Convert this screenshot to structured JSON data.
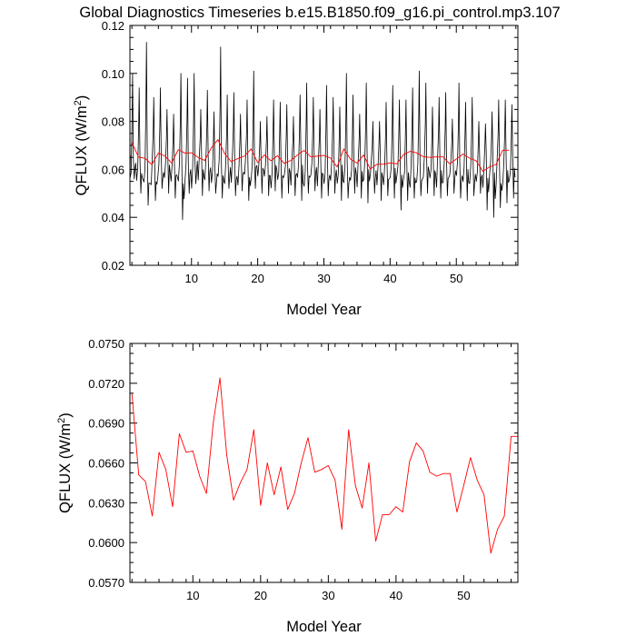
{
  "title": "Global Diagnostics Timeseries b.e15.B1850.f09_g16.pi_control.mp3.107",
  "colors": {
    "monthly": "#000000",
    "annual": "#ff0000",
    "axes": "#000000"
  },
  "chart_data": [
    {
      "type": "line",
      "xlabel": "Model Year",
      "ylabel": "QFLUX (W/m",
      "ylabel_sup": "2",
      "ylabel_close": ")",
      "xlim": [
        0.7,
        59.3
      ],
      "ylim": [
        0.02,
        0.12
      ],
      "xticks": [
        10,
        20,
        30,
        40,
        50
      ],
      "xtick_labels": [
        "10",
        "20",
        "30",
        "40",
        "50"
      ],
      "yticks": [
        0.02,
        0.04,
        0.06,
        0.08,
        0.1,
        0.12
      ],
      "ytick_labels": [
        "0.02",
        "0.04",
        "0.06",
        "0.08",
        "0.10",
        "0.12"
      ],
      "series": [
        {
          "style": "monthly",
          "peak_years": [
            1.1,
            2.1,
            3.2,
            4.3,
            5.3,
            6.3,
            7.3,
            8.4,
            9.4,
            10.4,
            11.4,
            12.4,
            13.4,
            14.4,
            15.4,
            16.4,
            17.4,
            18.4,
            19.4,
            20.4,
            21.4,
            22.4,
            23.4,
            24.4,
            25.4,
            26.4,
            27.4,
            28.4,
            29.4,
            30.4,
            31.4,
            32.4,
            33.4,
            34.4,
            35.4,
            36.4,
            37.4,
            38.4,
            39.4,
            40.4,
            41.4,
            42.4,
            43.4,
            44.4,
            45.4,
            46.4,
            47.4,
            48.4,
            49.4,
            50.4,
            51.4,
            52.4,
            53.4,
            54.4,
            55.4,
            56.4,
            57.4,
            58.4
          ],
          "peak_values": [
            0.1,
            0.094,
            0.113,
            0.09,
            0.094,
            0.085,
            0.083,
            0.1,
            0.098,
            0.1,
            0.085,
            0.093,
            0.084,
            0.111,
            0.091,
            0.092,
            0.083,
            0.089,
            0.101,
            0.08,
            0.082,
            0.089,
            0.088,
            0.087,
            0.082,
            0.091,
            0.096,
            0.09,
            0.085,
            0.095,
            0.09,
            0.086,
            0.1,
            0.091,
            0.083,
            0.096,
            0.08,
            0.08,
            0.088,
            0.095,
            0.089,
            0.089,
            0.094,
            0.101,
            0.096,
            0.086,
            0.09,
            0.092,
            0.081,
            0.096,
            0.088,
            0.09,
            0.08,
            0.079,
            0.084,
            0.089,
            0.089,
            0.087
          ],
          "trough_values": [
            0.056,
            0.05,
            0.045,
            0.047,
            0.052,
            0.05,
            0.048,
            0.039,
            0.05,
            0.054,
            0.049,
            0.051,
            0.05,
            0.048,
            0.052,
            0.049,
            0.051,
            0.047,
            0.052,
            0.05,
            0.049,
            0.051,
            0.048,
            0.05,
            0.049,
            0.047,
            0.05,
            0.051,
            0.048,
            0.049,
            0.05,
            0.047,
            0.048,
            0.05,
            0.048,
            0.046,
            0.05,
            0.047,
            0.049,
            0.048,
            0.043,
            0.047,
            0.048,
            0.049,
            0.05,
            0.049,
            0.048,
            0.049,
            0.05,
            0.048,
            0.047,
            0.049,
            0.05,
            0.043,
            0.04,
            0.044,
            0.046,
            0.048
          ]
        },
        {
          "style": "annual",
          "x": [
            1,
            2,
            3,
            4,
            5,
            6,
            7,
            8,
            9,
            10,
            11,
            12,
            13,
            14,
            15,
            16,
            17,
            18,
            19,
            20,
            21,
            22,
            23,
            24,
            25,
            26,
            27,
            28,
            29,
            30,
            31,
            32,
            33,
            34,
            35,
            36,
            37,
            38,
            39,
            40,
            41,
            42,
            43,
            44,
            45,
            46,
            47,
            48,
            49,
            50,
            51,
            52,
            53,
            54,
            55,
            56,
            57,
            58
          ],
          "values": [
            0.0712,
            0.0651,
            0.0646,
            0.062,
            0.0668,
            0.0655,
            0.0627,
            0.0682,
            0.0668,
            0.0669,
            0.065,
            0.0637,
            0.069,
            0.0724,
            0.0666,
            0.0632,
            0.0645,
            0.0655,
            0.0685,
            0.0628,
            0.066,
            0.0636,
            0.0657,
            0.0625,
            0.0637,
            0.066,
            0.0679,
            0.0653,
            0.0655,
            0.0658,
            0.0647,
            0.061,
            0.0685,
            0.0643,
            0.0626,
            0.066,
            0.0601,
            0.0621,
            0.0621,
            0.0627,
            0.0623,
            0.0661,
            0.0675,
            0.0669,
            0.0653,
            0.065,
            0.0652,
            0.0652,
            0.0623,
            0.0643,
            0.0664,
            0.0647,
            0.0636,
            0.0592,
            0.061,
            0.062,
            0.068,
            0.068
          ]
        }
      ]
    },
    {
      "type": "line",
      "xlabel": "Model Year",
      "ylabel": "QFLUX (W/m",
      "ylabel_sup": "2",
      "ylabel_close": ")",
      "xlim": [
        0.7,
        58.0
      ],
      "ylim": [
        0.057,
        0.075
      ],
      "xticks": [
        10,
        20,
        30,
        40,
        50
      ],
      "xtick_labels": [
        "10",
        "20",
        "30",
        "40",
        "50"
      ],
      "yticks": [
        0.057,
        0.06,
        0.063,
        0.066,
        0.069,
        0.072,
        0.075
      ],
      "ytick_labels": [
        "0.0570",
        "0.0600",
        "0.0630",
        "0.0660",
        "0.0690",
        "0.0720",
        "0.0750"
      ],
      "series": [
        {
          "style": "annual",
          "x": [
            1,
            2,
            3,
            4,
            5,
            6,
            7,
            8,
            9,
            10,
            11,
            12,
            13,
            14,
            15,
            16,
            17,
            18,
            19,
            20,
            21,
            22,
            23,
            24,
            25,
            26,
            27,
            28,
            29,
            30,
            31,
            32,
            33,
            34,
            35,
            36,
            37,
            38,
            39,
            40,
            41,
            42,
            43,
            44,
            45,
            46,
            47,
            48,
            49,
            50,
            51,
            52,
            53,
            54,
            55,
            56,
            57,
            58
          ],
          "values": [
            0.0712,
            0.0651,
            0.0646,
            0.062,
            0.0668,
            0.0655,
            0.0627,
            0.0682,
            0.0668,
            0.0669,
            0.065,
            0.0637,
            0.069,
            0.0724,
            0.0666,
            0.0632,
            0.0645,
            0.0655,
            0.0685,
            0.0628,
            0.066,
            0.0636,
            0.0657,
            0.0625,
            0.0637,
            0.066,
            0.0679,
            0.0653,
            0.0655,
            0.0658,
            0.0647,
            0.061,
            0.0685,
            0.0643,
            0.0626,
            0.066,
            0.0601,
            0.0621,
            0.0621,
            0.0627,
            0.0623,
            0.0661,
            0.0675,
            0.0669,
            0.0653,
            0.065,
            0.0652,
            0.0652,
            0.0623,
            0.0643,
            0.0664,
            0.0647,
            0.0636,
            0.0592,
            0.061,
            0.062,
            0.068,
            0.068
          ]
        }
      ]
    }
  ]
}
